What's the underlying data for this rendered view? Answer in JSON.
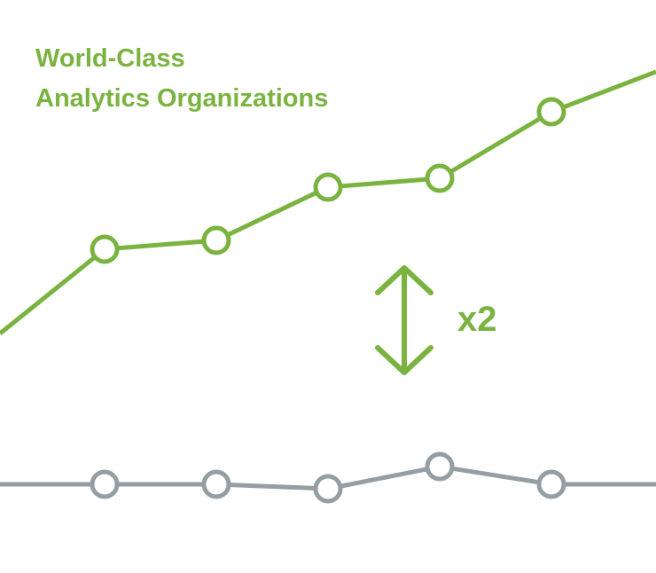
{
  "chart_data": {
    "type": "line",
    "title_lines": [
      "World-Class",
      "Analytics Organizations"
    ],
    "annotation": "x2",
    "x": [
      0,
      1,
      2,
      3,
      4,
      5,
      6
    ],
    "ylim": [
      0,
      130
    ],
    "grid": false,
    "series": [
      {
        "key": "world_class",
        "color": "#7ab340",
        "values": [
          54,
          73,
          75,
          87,
          89,
          104,
          113
        ]
      },
      {
        "key": "other",
        "color": "#959ea3",
        "values": [
          20,
          20,
          20,
          19,
          24,
          20,
          20
        ]
      }
    ],
    "markers": "hollow-circle",
    "annotation_icon": "double-arrow-vertical-icon"
  }
}
